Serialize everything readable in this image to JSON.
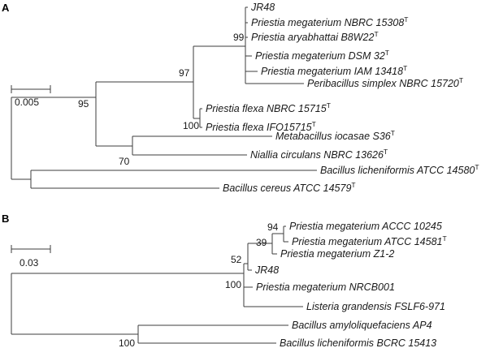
{
  "panel_a": {
    "label": "A",
    "scale_label": "0.005",
    "taxa": [
      {
        "name": "JR48",
        "type_strain": ""
      },
      {
        "name": "Priestia megaterium NBRC 15308",
        "type_strain": "T"
      },
      {
        "name": "Priestia aryabhattai B8W22",
        "type_strain": "T"
      },
      {
        "name": "Priestia megaterium DSM 32",
        "type_strain": "T"
      },
      {
        "name": "Priestia megaterium IAM 13418",
        "type_strain": "T"
      },
      {
        "name": "Peribacillus simplex NBRC 15720",
        "type_strain": "T"
      },
      {
        "name": "Priestia flexa NBRC 15715",
        "type_strain": "T"
      },
      {
        "name": "Priestia flexa IFO15715",
        "type_strain": "T"
      },
      {
        "name": "Metabacillus iocasae S36",
        "type_strain": "T"
      },
      {
        "name": "Niallia circulans NBRC 13626",
        "type_strain": "T"
      },
      {
        "name": "Bacillus licheniformis ATCC 14580",
        "type_strain": "T"
      },
      {
        "name": "Bacillus cereus ATCC 14579",
        "type_strain": "T"
      }
    ],
    "bootstrap": [
      "99",
      "97",
      "95",
      "100",
      "70"
    ]
  },
  "panel_b": {
    "label": "B",
    "scale_label": "0.03",
    "taxa": [
      {
        "name": "Priestia megaterium ACCC 10245",
        "type_strain": ""
      },
      {
        "name": "Priestia megaterium ATCC 14581",
        "type_strain": "T"
      },
      {
        "name": "Priestia megaterium Z1-2",
        "type_strain": ""
      },
      {
        "name": "JR48",
        "type_strain": ""
      },
      {
        "name": "Priestia megaterium NRCB001",
        "type_strain": ""
      },
      {
        "name": "Listeria grandensis FSLF6-971",
        "type_strain": ""
      },
      {
        "name": "Bacillus amyloliquefaciens AP4",
        "type_strain": ""
      },
      {
        "name": "Bacillus licheniformis BCRC 15413",
        "type_strain": ""
      }
    ],
    "bootstrap": [
      "94",
      "39",
      "52",
      "100",
      "100"
    ]
  }
}
